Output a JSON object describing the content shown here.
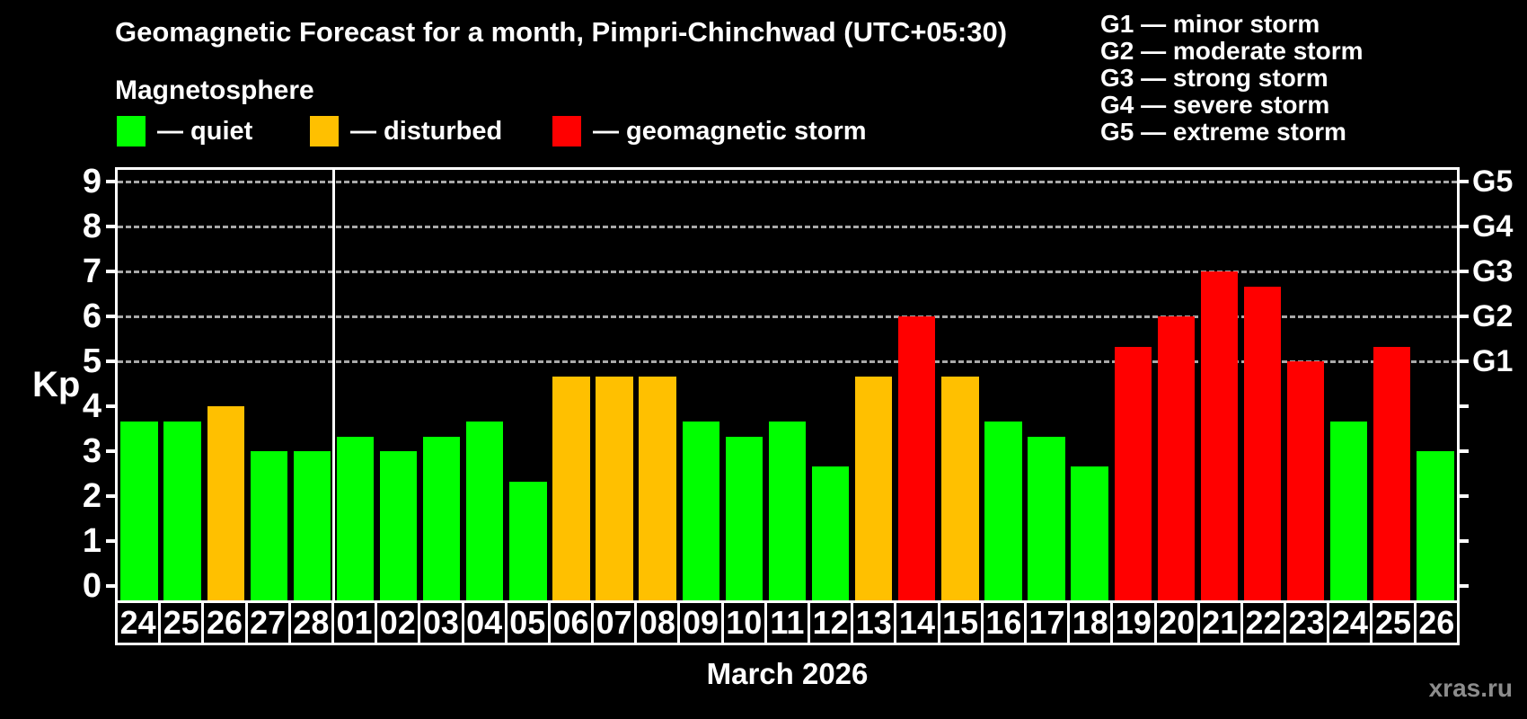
{
  "title": "Geomagnetic Forecast for a month, Pimpri-Chinchwad (UTC+05:30)",
  "subtitle": "Magnetosphere",
  "legend": {
    "items": [
      {
        "id": "quiet",
        "label": "— quiet",
        "color": "#00ff00"
      },
      {
        "id": "disturbed",
        "label": "— disturbed",
        "color": "#ffc000"
      },
      {
        "id": "storm",
        "label": "— geomagnetic storm",
        "color": "#ff0000"
      }
    ]
  },
  "g_legend": {
    "lines": [
      "G1 — minor storm",
      "G2 — moderate storm",
      "G3 — strong storm",
      "G4 — severe storm",
      "G5 — extreme storm"
    ]
  },
  "y_axis": {
    "label": "Kp",
    "ticks": [
      "0",
      "1",
      "2",
      "3",
      "4",
      "5",
      "6",
      "7",
      "8",
      "9"
    ]
  },
  "right_axis": {
    "tick_values": [
      0,
      1,
      2,
      3,
      4,
      5,
      6,
      7,
      8,
      9
    ],
    "labels": [
      {
        "text": "G1",
        "value": 5
      },
      {
        "text": "G2",
        "value": 6
      },
      {
        "text": "G3",
        "value": 7
      },
      {
        "text": "G4",
        "value": 8
      },
      {
        "text": "G5",
        "value": 9
      }
    ]
  },
  "x_axis": {
    "month_label": "March 2026"
  },
  "watermark": "xras.ru",
  "colors": {
    "background": "#000000",
    "quiet": "#00ff00",
    "disturbed": "#ffc000",
    "storm": "#ff0000",
    "grid": "#a9a9a9",
    "watermark": "#8c8c8c"
  },
  "chart_data": {
    "type": "bar",
    "title": "Geomagnetic Forecast for a month, Pimpri-Chinchwad (UTC+05:30)",
    "xlabel": "March 2026",
    "ylabel": "Kp",
    "ylim": [
      0,
      9
    ],
    "grid": "dashed horizontal at 5-9",
    "legend_position": "top-left",
    "gridlines": [
      5,
      6,
      7,
      8,
      9
    ],
    "month_divider_after_index": 5,
    "categories": [
      "24",
      "25",
      "26",
      "27",
      "28",
      "01",
      "02",
      "03",
      "04",
      "05",
      "06",
      "07",
      "08",
      "09",
      "10",
      "11",
      "12",
      "13",
      "14",
      "15",
      "16",
      "17",
      "18",
      "19",
      "20",
      "21",
      "22",
      "23",
      "24",
      "25",
      "26"
    ],
    "values": [
      3.67,
      3.67,
      4.0,
      3.0,
      3.0,
      3.33,
      3.0,
      3.33,
      3.67,
      2.33,
      4.67,
      4.67,
      4.67,
      3.67,
      3.33,
      3.67,
      2.67,
      4.67,
      6.0,
      4.67,
      3.67,
      3.33,
      2.67,
      5.33,
      6.0,
      7.0,
      6.67,
      5.0,
      3.67,
      5.33,
      3.0
    ],
    "statuses": [
      "quiet",
      "quiet",
      "disturbed",
      "quiet",
      "quiet",
      "quiet",
      "quiet",
      "quiet",
      "quiet",
      "quiet",
      "disturbed",
      "disturbed",
      "disturbed",
      "quiet",
      "quiet",
      "quiet",
      "quiet",
      "disturbed",
      "storm",
      "disturbed",
      "quiet",
      "quiet",
      "quiet",
      "storm",
      "storm",
      "storm",
      "storm",
      "storm",
      "quiet",
      "storm",
      "quiet"
    ]
  }
}
